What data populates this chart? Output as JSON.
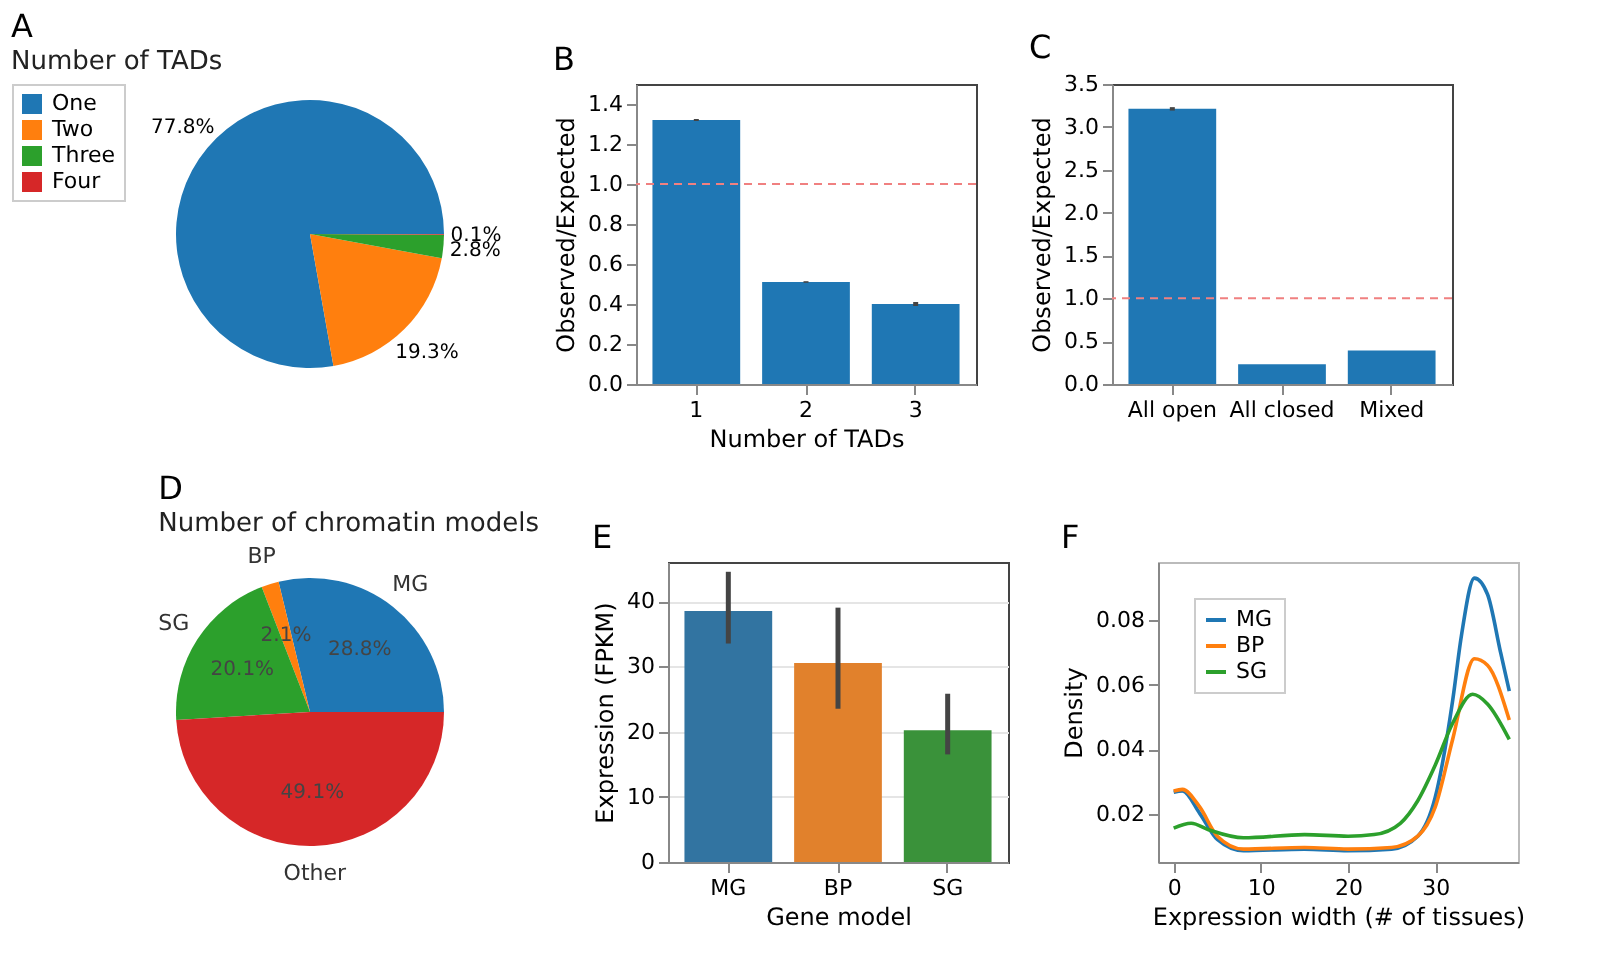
{
  "chart_data": [
    {
      "type": "pie",
      "annotations": [
        "A"
      ],
      "title": "Number of TADs",
      "categories": [
        "One",
        "Two",
        "Three",
        "Four"
      ],
      "values": [
        77.8,
        19.3,
        2.8,
        0.1
      ],
      "value_labels": [
        "77.8%",
        "19.3%",
        "2.8%",
        "0.1%"
      ],
      "colors": [
        "#1f77b4",
        "#ff7f0e",
        "#2ca02c",
        "#d62728"
      ],
      "legend": "left"
    },
    {
      "type": "bar",
      "annotations": [
        "B"
      ],
      "categories": [
        "1",
        "2",
        "3"
      ],
      "values": [
        1.32,
        0.51,
        0.4
      ],
      "errors": [
        0.005,
        0.004,
        0.01
      ],
      "color": "#1f77b4",
      "xlabel": "Number of TADs",
      "ylabel": "Observed/Expected",
      "ylim": [
        0,
        1.5
      ],
      "yticks": [
        {
          "value": 0,
          "label": "0.0"
        },
        0.2,
        0.4,
        0.6,
        0.8,
        {
          "value": 1,
          "label": "1.0"
        },
        1.2,
        1.4
      ],
      "ref_lines": [
        {
          "axis": "y",
          "value": 1,
          "label": null,
          "color": "#f08080",
          "line_style": "dashed"
        }
      ],
      "grid": false
    },
    {
      "type": "bar",
      "annotations": [
        "C"
      ],
      "categories": [
        "All open",
        "All closed",
        "Mixed"
      ],
      "values": [
        3.21,
        0.23,
        0.39
      ],
      "errors": [
        0.02,
        null,
        null
      ],
      "color": "#1f77b4",
      "ylabel": "Observed/Expected",
      "ylim": [
        0,
        3.5
      ],
      "yticks": [
        {
          "value": 0,
          "label": "0.0"
        },
        0.5,
        {
          "value": 1,
          "label": "1.0"
        },
        1.5,
        {
          "value": 2,
          "label": "2.0"
        },
        2.5,
        {
          "value": 3,
          "label": "3.0"
        },
        3.5
      ],
      "ref_lines": [
        {
          "axis": "y",
          "value": 1,
          "label": null,
          "color": "#f08080",
          "line_style": "dashed"
        }
      ],
      "grid": false
    },
    {
      "type": "pie",
      "annotations": [
        "D"
      ],
      "title": "Number of chromatin models",
      "categories": [
        "MG",
        "BP",
        "SG",
        "Other"
      ],
      "values": [
        28.8,
        2.1,
        20.1,
        49.1
      ],
      "value_labels": [
        "28.8%",
        "2.1%",
        "20.1%",
        "49.1%"
      ],
      "colors": [
        "#1f77b4",
        "#ff7f0e",
        "#2ca02c",
        "#d62728"
      ],
      "legend": false
    },
    {
      "type": "bar",
      "annotations": [
        "E"
      ],
      "categories": [
        "MG",
        "BP",
        "SG"
      ],
      "values": [
        38.5,
        30.5,
        20.2
      ],
      "errors": [
        [
          33.5,
          44.5
        ],
        [
          23.5,
          39.0
        ],
        [
          16.5,
          25.8
        ]
      ],
      "colors": [
        "#3274a1",
        "#e1812c",
        "#3a923a"
      ],
      "xlabel": "Gene model",
      "ylabel": "Expression (FPKM)",
      "ylim": [
        0,
        46
      ],
      "yticks": [
        0,
        10,
        20,
        30,
        40
      ],
      "grid": "y"
    },
    {
      "type": "line",
      "annotations": [
        "F"
      ],
      "xlabel": "Expression width (# of tissues)",
      "ylabel": "Density",
      "xlim": [
        -1.8,
        39.5
      ],
      "xticks": [
        0,
        10,
        20,
        30
      ],
      "ylim": [
        0.005,
        0.098
      ],
      "yticks": [
        0.02,
        0.04,
        0.06,
        0.08
      ],
      "legend": "top left",
      "grid": false,
      "series": [
        {
          "name": "MG",
          "color": "#1f77b4",
          "x": [
            0,
            1,
            3,
            5,
            8,
            15,
            20,
            25,
            28,
            30,
            32,
            33,
            34.5,
            36,
            37.5,
            38.5
          ],
          "values": [
            0.0266,
            0.027,
            0.02,
            0.012,
            0.0085,
            0.009,
            0.0085,
            0.009,
            0.013,
            0.025,
            0.055,
            0.075,
            0.093,
            0.088,
            0.07,
            0.058
          ]
        },
        {
          "name": "BP",
          "color": "#ff7f0e",
          "x": [
            0,
            1,
            3,
            5,
            8,
            15,
            20,
            25,
            28,
            30,
            32,
            34.5,
            36,
            38.5
          ],
          "values": [
            0.027,
            0.0275,
            0.022,
            0.013,
            0.009,
            0.0095,
            0.009,
            0.0095,
            0.013,
            0.022,
            0.043,
            0.068,
            0.066,
            0.049
          ]
        },
        {
          "name": "SG",
          "color": "#2ca02c",
          "x": [
            0,
            2,
            4,
            8,
            15,
            20,
            23,
            26,
            28,
            30,
            32,
            34.3,
            36,
            38.5
          ],
          "values": [
            0.0155,
            0.017,
            0.015,
            0.0125,
            0.0135,
            0.013,
            0.0135,
            0.017,
            0.024,
            0.035,
            0.048,
            0.057,
            0.054,
            0.043
          ]
        }
      ]
    }
  ]
}
